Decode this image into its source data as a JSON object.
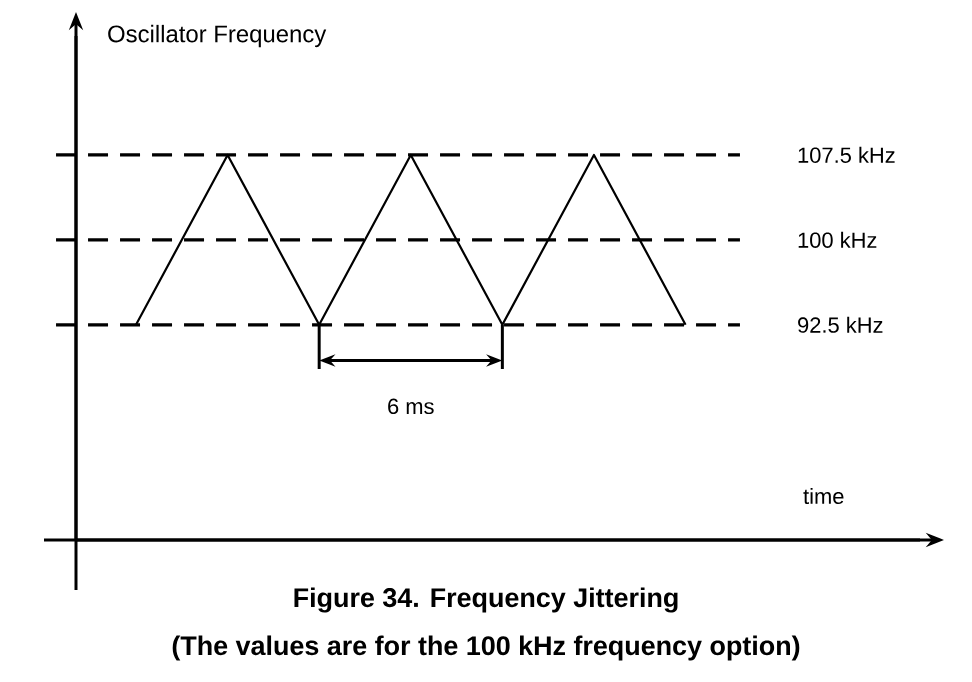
{
  "chart_data": {
    "type": "line",
    "title": "Figure 34. Frequency Jittering",
    "subtitle": "(The values are for the 100 kHz frequency option)",
    "ylabel": "Oscillator Frequency",
    "ylim": [
      73.5,
      118
    ],
    "categories": [
      null,
      null,
      null,
      null,
      null,
      null,
      null
    ],
    "series": [
      {
        "color": "#000000",
        "values": [
          92.5,
          107.5,
          92.5,
          107.5,
          92.5,
          107.5,
          92.5
        ]
      }
    ],
    "yticks": [
      {
        "value": 92.5,
        "label": "92.5 kHz"
      },
      {
        "value": 100,
        "label": "100 kHz"
      },
      {
        "value": 107.5,
        "label": "107.5 kHz"
      }
    ],
    "grid": "y",
    "annotations": [
      "6 ms",
      "time"
    ],
    "marker": "none",
    "line_style": "solid"
  }
}
